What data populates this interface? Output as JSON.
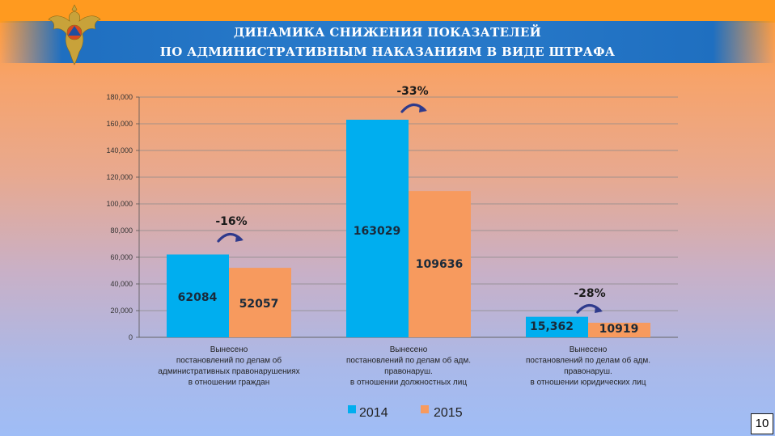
{
  "header": {
    "title_line1": "ДИНАМИКА СНИЖЕНИЯ ПОКАЗАТЕЛЕЙ",
    "title_line2": "ПО АДМИНИСТРАТИВНЫМ НАКАЗАНИЯМ В ВИДЕ ШТРАФА"
  },
  "page_number": "10",
  "colors": {
    "series_2014": "#00aeef",
    "series_2015": "#f79a5e",
    "arrow": "#2e3a8c"
  },
  "chart_data": {
    "type": "bar",
    "title": "",
    "xlabel": "",
    "ylabel": "",
    "ylim": [
      0,
      180000
    ],
    "yticks": [
      0,
      20000,
      40000,
      60000,
      80000,
      100000,
      120000,
      140000,
      160000,
      180000
    ],
    "ytick_labels": [
      "0",
      "20,000",
      "40,000",
      "60,000",
      "80,000",
      "100,000",
      "120,000",
      "140,000",
      "160,000",
      "180,000"
    ],
    "grid": true,
    "legend_position": "bottom",
    "categories": [
      [
        "Вынесено",
        "постановлений по делам об",
        "административных правонарушениях",
        "в отношении граждан"
      ],
      [
        "Вынесено",
        "постановлений по делам об адм.",
        "правонаруш.",
        "в отношении должностных лиц"
      ],
      [
        "Вынесено",
        "постановлений по делам об адм.",
        "правонаруш.",
        "в отношении юридических лиц"
      ]
    ],
    "series": [
      {
        "name": "2014",
        "values": [
          62084,
          163029,
          15362
        ],
        "labels": [
          "62084",
          "163029",
          "15,362"
        ]
      },
      {
        "name": "2015",
        "values": [
          52057,
          109636,
          10919
        ],
        "labels": [
          "52057",
          "109636",
          "10919"
        ]
      }
    ],
    "annotations": [
      "-16%",
      "-33%",
      "-28%"
    ]
  }
}
